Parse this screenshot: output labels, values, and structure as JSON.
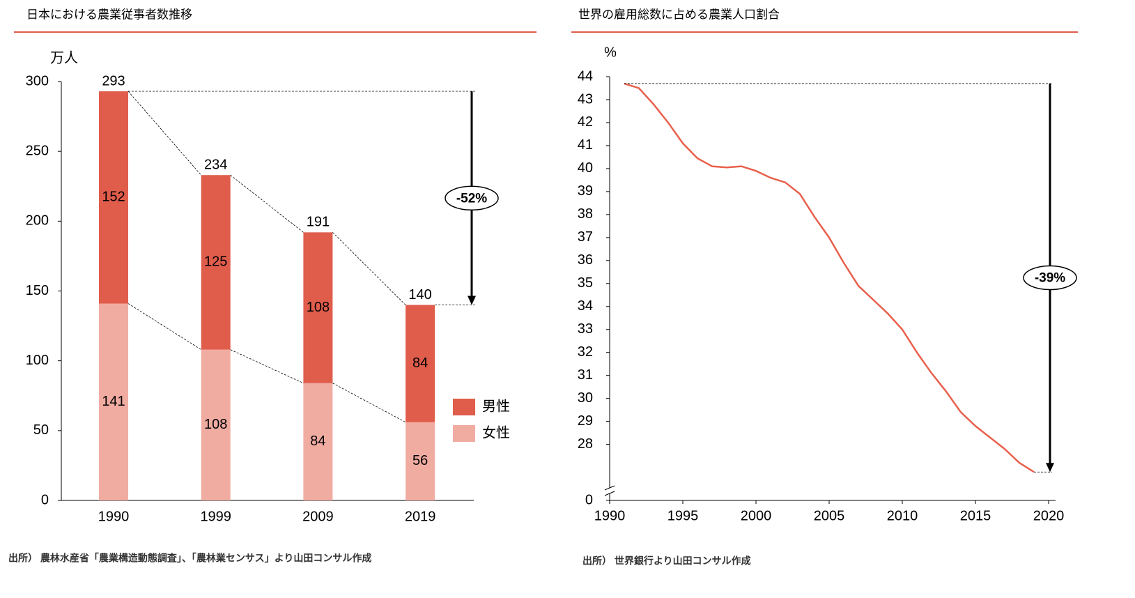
{
  "chart_data": [
    {
      "type": "stacked_bar",
      "title": "日本における農業従事者数推移",
      "unit_label": "万人",
      "categories": [
        "1990",
        "1999",
        "2009",
        "2019"
      ],
      "series": [
        {
          "name": "男性",
          "color": "#e05c4b",
          "values": [
            152,
            125,
            108,
            84
          ]
        },
        {
          "name": "女性",
          "color": "#f1aca2",
          "values": [
            141,
            108,
            84,
            56
          ]
        }
      ],
      "totals": [
        293,
        234,
        191,
        140
      ],
      "ylim": [
        0,
        300
      ],
      "yticks": [
        0,
        50,
        100,
        150,
        200,
        250,
        300
      ],
      "annotation": "-52%",
      "legend": "right",
      "source": "出所） 農林水産省「農業構造動態調査」、「農林業センサス」より山田コンサル作成"
    },
    {
      "type": "line",
      "title": "世界の雇用総数に占める農業人口割合",
      "unit_label": "%",
      "x": [
        1991,
        1992,
        1993,
        1994,
        1995,
        1996,
        1997,
        1998,
        1999,
        2000,
        2001,
        2002,
        2003,
        2004,
        2005,
        2006,
        2007,
        2008,
        2009,
        2010,
        2011,
        2012,
        2013,
        2014,
        2015,
        2016,
        2017,
        2018,
        2019
      ],
      "series": [
        {
          "name": "農業人口割合",
          "color": "#e8604c",
          "values": [
            43.7,
            43.5,
            42.8,
            42.0,
            41.1,
            40.45,
            40.1,
            40.05,
            40.1,
            39.9,
            39.6,
            39.4,
            38.9,
            37.9,
            37.0,
            35.9,
            34.9,
            34.3,
            33.7,
            33.0,
            32.0,
            31.1,
            30.3,
            29.4,
            28.8,
            28.3,
            27.8,
            27.2,
            26.8
          ]
        }
      ],
      "xlim": [
        1990,
        2020
      ],
      "xticks": [
        1990,
        1995,
        2000,
        2005,
        2010,
        2015,
        2020
      ],
      "ylim": [
        26.2,
        44
      ],
      "yticks": [
        0,
        28,
        29,
        30,
        31,
        32,
        33,
        34,
        35,
        36,
        37,
        38,
        39,
        40,
        41,
        42,
        43,
        44
      ],
      "axis_break": true,
      "annotation": "-39%",
      "source": "出所） 世界銀行より山田コンサル作成"
    }
  ]
}
